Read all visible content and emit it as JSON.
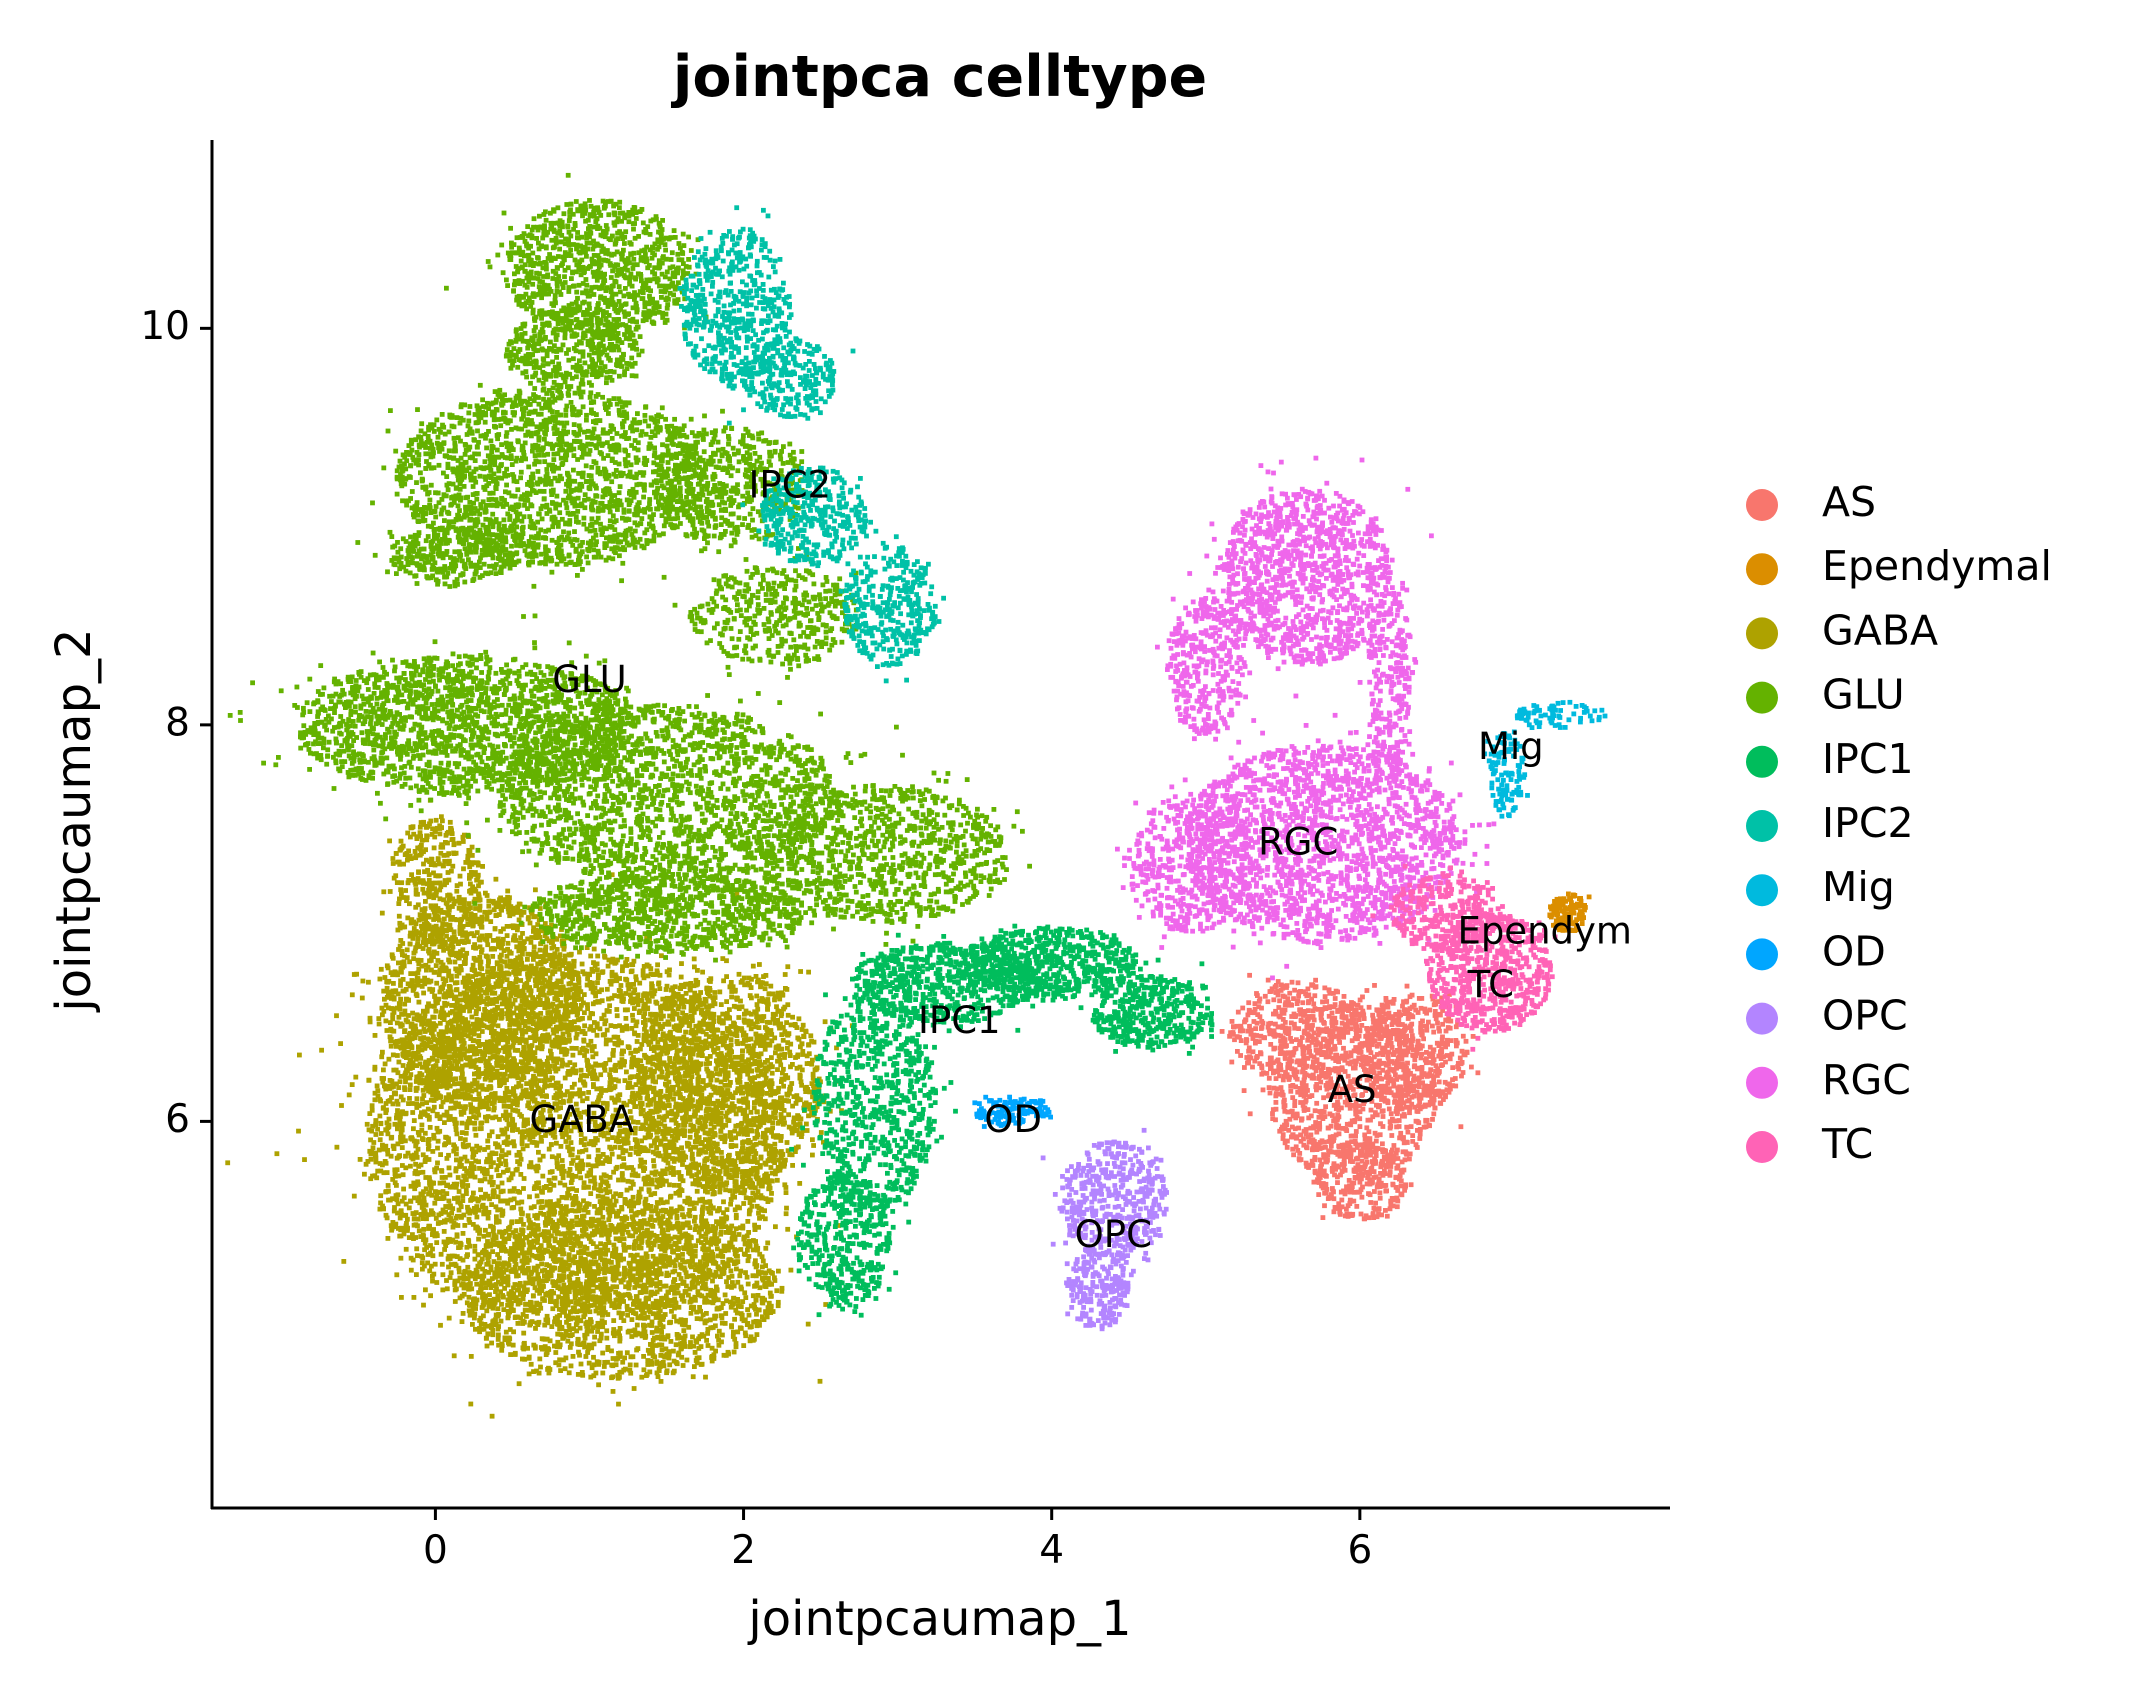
{
  "chart_data": {
    "type": "scatter",
    "title": "jointpca celltype",
    "xlabel": "jointpcaumap_1",
    "ylabel": "jointpcaumap_2",
    "xlim": [
      -1.45,
      8.0
    ],
    "ylim": [
      4.05,
      10.95
    ],
    "xticks": [
      {
        "value": 0,
        "label": "0"
      },
      {
        "value": 2,
        "label": "2"
      },
      {
        "value": 4,
        "label": "4"
      },
      {
        "value": 6,
        "label": "6"
      }
    ],
    "yticks": [
      {
        "value": 6,
        "label": "6"
      },
      {
        "value": 8,
        "label": "8"
      },
      {
        "value": 10,
        "label": "10"
      }
    ],
    "grid": false,
    "legend_position": "right",
    "series": [
      {
        "name": "AS",
        "color": "#F8766D",
        "label": "AS",
        "label_pos": [
          5.95,
          6.15
        ],
        "regions": [
          {
            "cx": 5.95,
            "cy": 6.15,
            "rx": 0.55,
            "ry": 0.45,
            "n": 900
          },
          {
            "cx": 5.6,
            "cy": 6.45,
            "rx": 0.45,
            "ry": 0.25,
            "n": 400
          },
          {
            "cx": 6.35,
            "cy": 6.35,
            "rx": 0.35,
            "ry": 0.3,
            "n": 400
          },
          {
            "cx": 6.0,
            "cy": 5.7,
            "rx": 0.3,
            "ry": 0.2,
            "n": 250
          }
        ]
      },
      {
        "name": "Ependymal",
        "color": "#DB8E00",
        "label": "Ependym",
        "label_pos": [
          7.2,
          6.95
        ],
        "regions": [
          {
            "cx": 7.35,
            "cy": 7.05,
            "rx": 0.12,
            "ry": 0.1,
            "n": 120
          }
        ]
      },
      {
        "name": "GABA",
        "color": "#AEA200",
        "label": "GABA",
        "label_pos": [
          0.95,
          6.0
        ],
        "regions": [
          {
            "cx": 0.9,
            "cy": 5.9,
            "rx": 1.35,
            "ry": 0.95,
            "n": 4500
          },
          {
            "cx": 0.3,
            "cy": 6.6,
            "rx": 0.65,
            "ry": 0.55,
            "n": 1500
          },
          {
            "cx": 1.2,
            "cy": 5.15,
            "rx": 1.05,
            "ry": 0.45,
            "n": 1500
          },
          {
            "cx": 1.9,
            "cy": 6.2,
            "rx": 0.6,
            "ry": 0.55,
            "n": 1200
          },
          {
            "cx": 0.0,
            "cy": 7.2,
            "rx": 0.3,
            "ry": 0.35,
            "n": 350
          }
        ]
      },
      {
        "name": "GLU",
        "color": "#64B200",
        "label": "GLU",
        "label_pos": [
          1.0,
          8.22
        ],
        "regions": [
          {
            "cx": 1.05,
            "cy": 10.3,
            "rx": 0.6,
            "ry": 0.35,
            "n": 900
          },
          {
            "cx": 0.9,
            "cy": 9.9,
            "rx": 0.45,
            "ry": 0.2,
            "n": 400
          },
          {
            "cx": 0.75,
            "cy": 9.25,
            "rx": 1.0,
            "ry": 0.45,
            "n": 1800
          },
          {
            "cx": 0.1,
            "cy": 8.85,
            "rx": 0.4,
            "ry": 0.15,
            "n": 300
          },
          {
            "cx": 1.9,
            "cy": 9.2,
            "rx": 0.5,
            "ry": 0.3,
            "n": 500
          },
          {
            "cx": 0.2,
            "cy": 8.0,
            "rx": 1.1,
            "ry": 0.35,
            "n": 1800
          },
          {
            "cx": 1.5,
            "cy": 7.65,
            "rx": 1.1,
            "ry": 0.45,
            "n": 1700
          },
          {
            "cx": 2.9,
            "cy": 7.35,
            "rx": 0.8,
            "ry": 0.35,
            "n": 900
          },
          {
            "cx": 1.5,
            "cy": 7.05,
            "rx": 0.9,
            "ry": 0.2,
            "n": 900
          },
          {
            "cx": 2.2,
            "cy": 8.55,
            "rx": 0.55,
            "ry": 0.25,
            "n": 400
          }
        ]
      },
      {
        "name": "IPC1",
        "color": "#00BD5C",
        "label": "IPC1",
        "label_pos": [
          3.4,
          6.5
        ],
        "regions": [
          {
            "cx": 2.85,
            "cy": 6.1,
            "rx": 0.4,
            "ry": 0.55,
            "n": 700
          },
          {
            "cx": 2.65,
            "cy": 5.4,
            "rx": 0.3,
            "ry": 0.35,
            "n": 400
          },
          {
            "cx": 3.3,
            "cy": 6.7,
            "rx": 0.6,
            "ry": 0.2,
            "n": 600
          },
          {
            "cx": 4.0,
            "cy": 6.8,
            "rx": 0.55,
            "ry": 0.18,
            "n": 600
          },
          {
            "cx": 4.65,
            "cy": 6.55,
            "rx": 0.4,
            "ry": 0.18,
            "n": 400
          }
        ]
      },
      {
        "name": "IPC2",
        "color": "#00C1A7",
        "label": "IPC2",
        "label_pos": [
          2.3,
          9.2
        ],
        "regions": [
          {
            "cx": 1.95,
            "cy": 10.1,
            "rx": 0.35,
            "ry": 0.4,
            "n": 500
          },
          {
            "cx": 2.3,
            "cy": 9.75,
            "rx": 0.3,
            "ry": 0.2,
            "n": 250
          },
          {
            "cx": 2.45,
            "cy": 9.05,
            "rx": 0.35,
            "ry": 0.25,
            "n": 350
          },
          {
            "cx": 2.95,
            "cy": 8.6,
            "rx": 0.3,
            "ry": 0.3,
            "n": 350
          }
        ]
      },
      {
        "name": "Mig",
        "color": "#00BADE",
        "label": "Mig",
        "label_pos": [
          6.98,
          7.88
        ],
        "regions": [
          {
            "cx": 6.95,
            "cy": 7.75,
            "rx": 0.12,
            "ry": 0.22,
            "n": 110
          },
          {
            "cx": 7.3,
            "cy": 8.05,
            "rx": 0.3,
            "ry": 0.07,
            "n": 70
          }
        ]
      },
      {
        "name": "OD",
        "color": "#00A6FF",
        "label": "OD",
        "label_pos": [
          3.75,
          6.0
        ],
        "regions": [
          {
            "cx": 3.75,
            "cy": 6.05,
            "rx": 0.25,
            "ry": 0.07,
            "n": 130
          }
        ]
      },
      {
        "name": "OPC",
        "color": "#B385FF",
        "label": "OPC",
        "label_pos": [
          4.4,
          5.42
        ],
        "regions": [
          {
            "cx": 4.4,
            "cy": 5.6,
            "rx": 0.35,
            "ry": 0.3,
            "n": 450
          },
          {
            "cx": 4.3,
            "cy": 5.15,
            "rx": 0.2,
            "ry": 0.2,
            "n": 200
          }
        ]
      },
      {
        "name": "RGC",
        "color": "#EF67EB",
        "label": "RGC",
        "label_pos": [
          5.6,
          7.4
        ],
        "regions": [
          {
            "cx": 5.65,
            "cy": 8.75,
            "rx": 0.55,
            "ry": 0.45,
            "n": 1100
          },
          {
            "cx": 5.0,
            "cy": 8.3,
            "rx": 0.25,
            "ry": 0.35,
            "n": 350
          },
          {
            "cx": 5.75,
            "cy": 7.4,
            "rx": 0.9,
            "ry": 0.5,
            "n": 1800
          },
          {
            "cx": 4.9,
            "cy": 7.3,
            "rx": 0.4,
            "ry": 0.35,
            "n": 450
          },
          {
            "cx": 6.2,
            "cy": 8.2,
            "rx": 0.15,
            "ry": 0.5,
            "n": 250
          }
        ]
      },
      {
        "name": "TC",
        "color": "#FF63B6",
        "label": "TC",
        "label_pos": [
          6.85,
          6.68
        ],
        "regions": [
          {
            "cx": 6.85,
            "cy": 6.75,
            "rx": 0.4,
            "ry": 0.3,
            "n": 600
          },
          {
            "cx": 6.55,
            "cy": 7.05,
            "rx": 0.35,
            "ry": 0.2,
            "n": 300
          }
        ]
      }
    ]
  }
}
